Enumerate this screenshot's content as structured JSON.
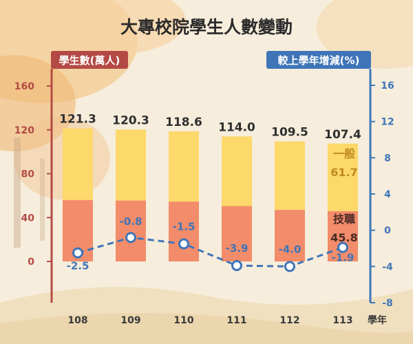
{
  "chart_data": {
    "type": "bar",
    "title": "大專校院學生人數變動",
    "categories": [
      "108",
      "109",
      "110",
      "111",
      "112",
      "113"
    ],
    "x_unit_label": "學年",
    "totals": [
      121.3,
      120.3,
      118.6,
      114.0,
      109.5,
      107.4
    ],
    "series": [
      {
        "name": "技職",
        "type": "bar",
        "axis": "left",
        "color": "#f28c6a",
        "values": [
          56.0,
          55.5,
          54.5,
          50.5,
          47.0,
          45.8
        ]
      },
      {
        "name": "一般",
        "type": "bar",
        "axis": "left",
        "color": "#fdd86a",
        "values": [
          65.3,
          64.8,
          64.1,
          63.5,
          62.5,
          61.7
        ]
      },
      {
        "name": "較上學年增減(%)",
        "type": "line",
        "axis": "right",
        "color": "#3f75b8",
        "values": [
          -2.5,
          -0.8,
          -1.5,
          -3.9,
          -4.0,
          -1.9
        ]
      }
    ],
    "left_axis": {
      "label": "學生數(萬人)",
      "ylim": [
        0,
        160
      ],
      "ticks": [
        "0",
        "40",
        "80",
        "120",
        "160"
      ]
    },
    "right_axis": {
      "label": "較上學年增減(%)",
      "ylim": [
        -8,
        16
      ],
      "ticks": [
        "-8",
        "-4",
        "0",
        "4",
        "8",
        "12",
        "16"
      ]
    },
    "total_labels": [
      "121.3",
      "120.3",
      "118.6",
      "114.0",
      "109.5",
      "107.4"
    ],
    "pct_labels": [
      "-2.5",
      "-0.8",
      "-1.5",
      "-3.9",
      "-4.0",
      "-1.9"
    ],
    "last_bar_labels": {
      "general_name": "一般",
      "general_value": "61.7",
      "vocational_name": "技職",
      "vocational_value": "45.8"
    },
    "grid": false,
    "colors": {
      "left_axis": "#b34a45",
      "right_axis": "#3f75b8"
    }
  }
}
